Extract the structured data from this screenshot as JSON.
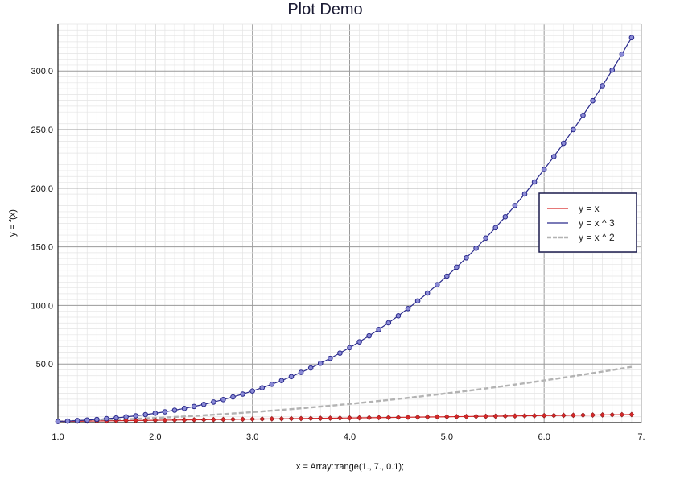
{
  "chart_data": {
    "type": "line",
    "title": "Plot Demo",
    "xlabel": "x = Array::range(1., 7., 0.1);",
    "ylabel": "y = f(x)",
    "xlim": [
      1.0,
      7.0
    ],
    "ylim": [
      0,
      340
    ],
    "grid": true,
    "legend_position": "right",
    "x_ticks": [
      1.0,
      2.0,
      3.0,
      4.0,
      5.0,
      6.0,
      7.0
    ],
    "x_tick_labels": [
      "1.0",
      "2.0",
      "3.0",
      "4.0",
      "5.0",
      "6.0",
      "7."
    ],
    "y_ticks": [
      50,
      100,
      150,
      200,
      250,
      300
    ],
    "y_tick_labels": [
      "50.0",
      "100.0",
      "150.0",
      "200.0",
      "250.0",
      "300.0"
    ],
    "x": {
      "start": 1.0,
      "stop": 7.0,
      "step": 0.1
    },
    "series": [
      {
        "name": "y = x",
        "expression": "x",
        "color": "#d62728",
        "style": "solid",
        "marker": "diamond"
      },
      {
        "name": "y = x ^ 3",
        "expression": "x^3",
        "color": "#2b2b8c",
        "style": "solid",
        "marker": "circle"
      },
      {
        "name": "y = x ^ 2",
        "expression": "x^2",
        "color": "#b3b3b3",
        "style": "dashed",
        "marker": "none"
      }
    ]
  }
}
